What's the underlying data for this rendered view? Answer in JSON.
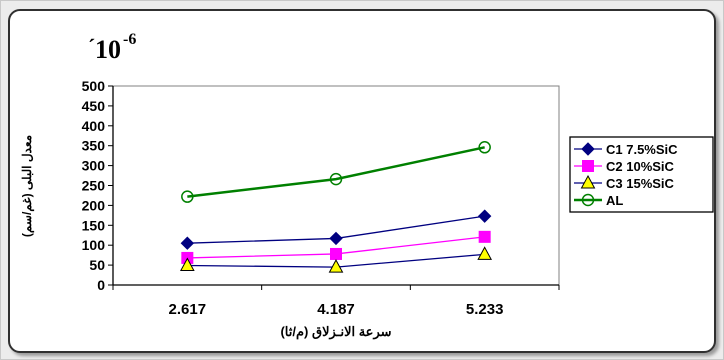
{
  "chart_data": {
    "type": "line",
    "scale_note": "10",
    "scale_exponent": "-6",
    "scale_prefix": "´",
    "xlabel": "سرعة الانـزلاق (م/ثا)",
    "ylabel": "معدل البلى (غم/سم)",
    "categories": [
      "2.617",
      "4.187",
      "5.233"
    ],
    "ylim": [
      0,
      500
    ],
    "yticks": [
      "0",
      "50",
      "100",
      "150",
      "200",
      "250",
      "300",
      "350",
      "400",
      "450",
      "500"
    ],
    "grid": false,
    "legend_position": "right",
    "series": [
      {
        "name": "C1 7.5%SiC",
        "values": [
          105,
          117,
          173
        ],
        "color": "#000080",
        "marker": "diamond"
      },
      {
        "name": "C2 10%SiC",
        "values": [
          68,
          78,
          121
        ],
        "color": "#ff00ff",
        "marker": "square"
      },
      {
        "name": "C3 15%SiC",
        "values": [
          49,
          45,
          77
        ],
        "color": "#000080",
        "marker": "triangle",
        "marker_fill": "#ffff00"
      },
      {
        "name": "AL",
        "values": [
          222,
          266,
          346
        ],
        "color": "#008000",
        "marker": "circle"
      }
    ]
  }
}
